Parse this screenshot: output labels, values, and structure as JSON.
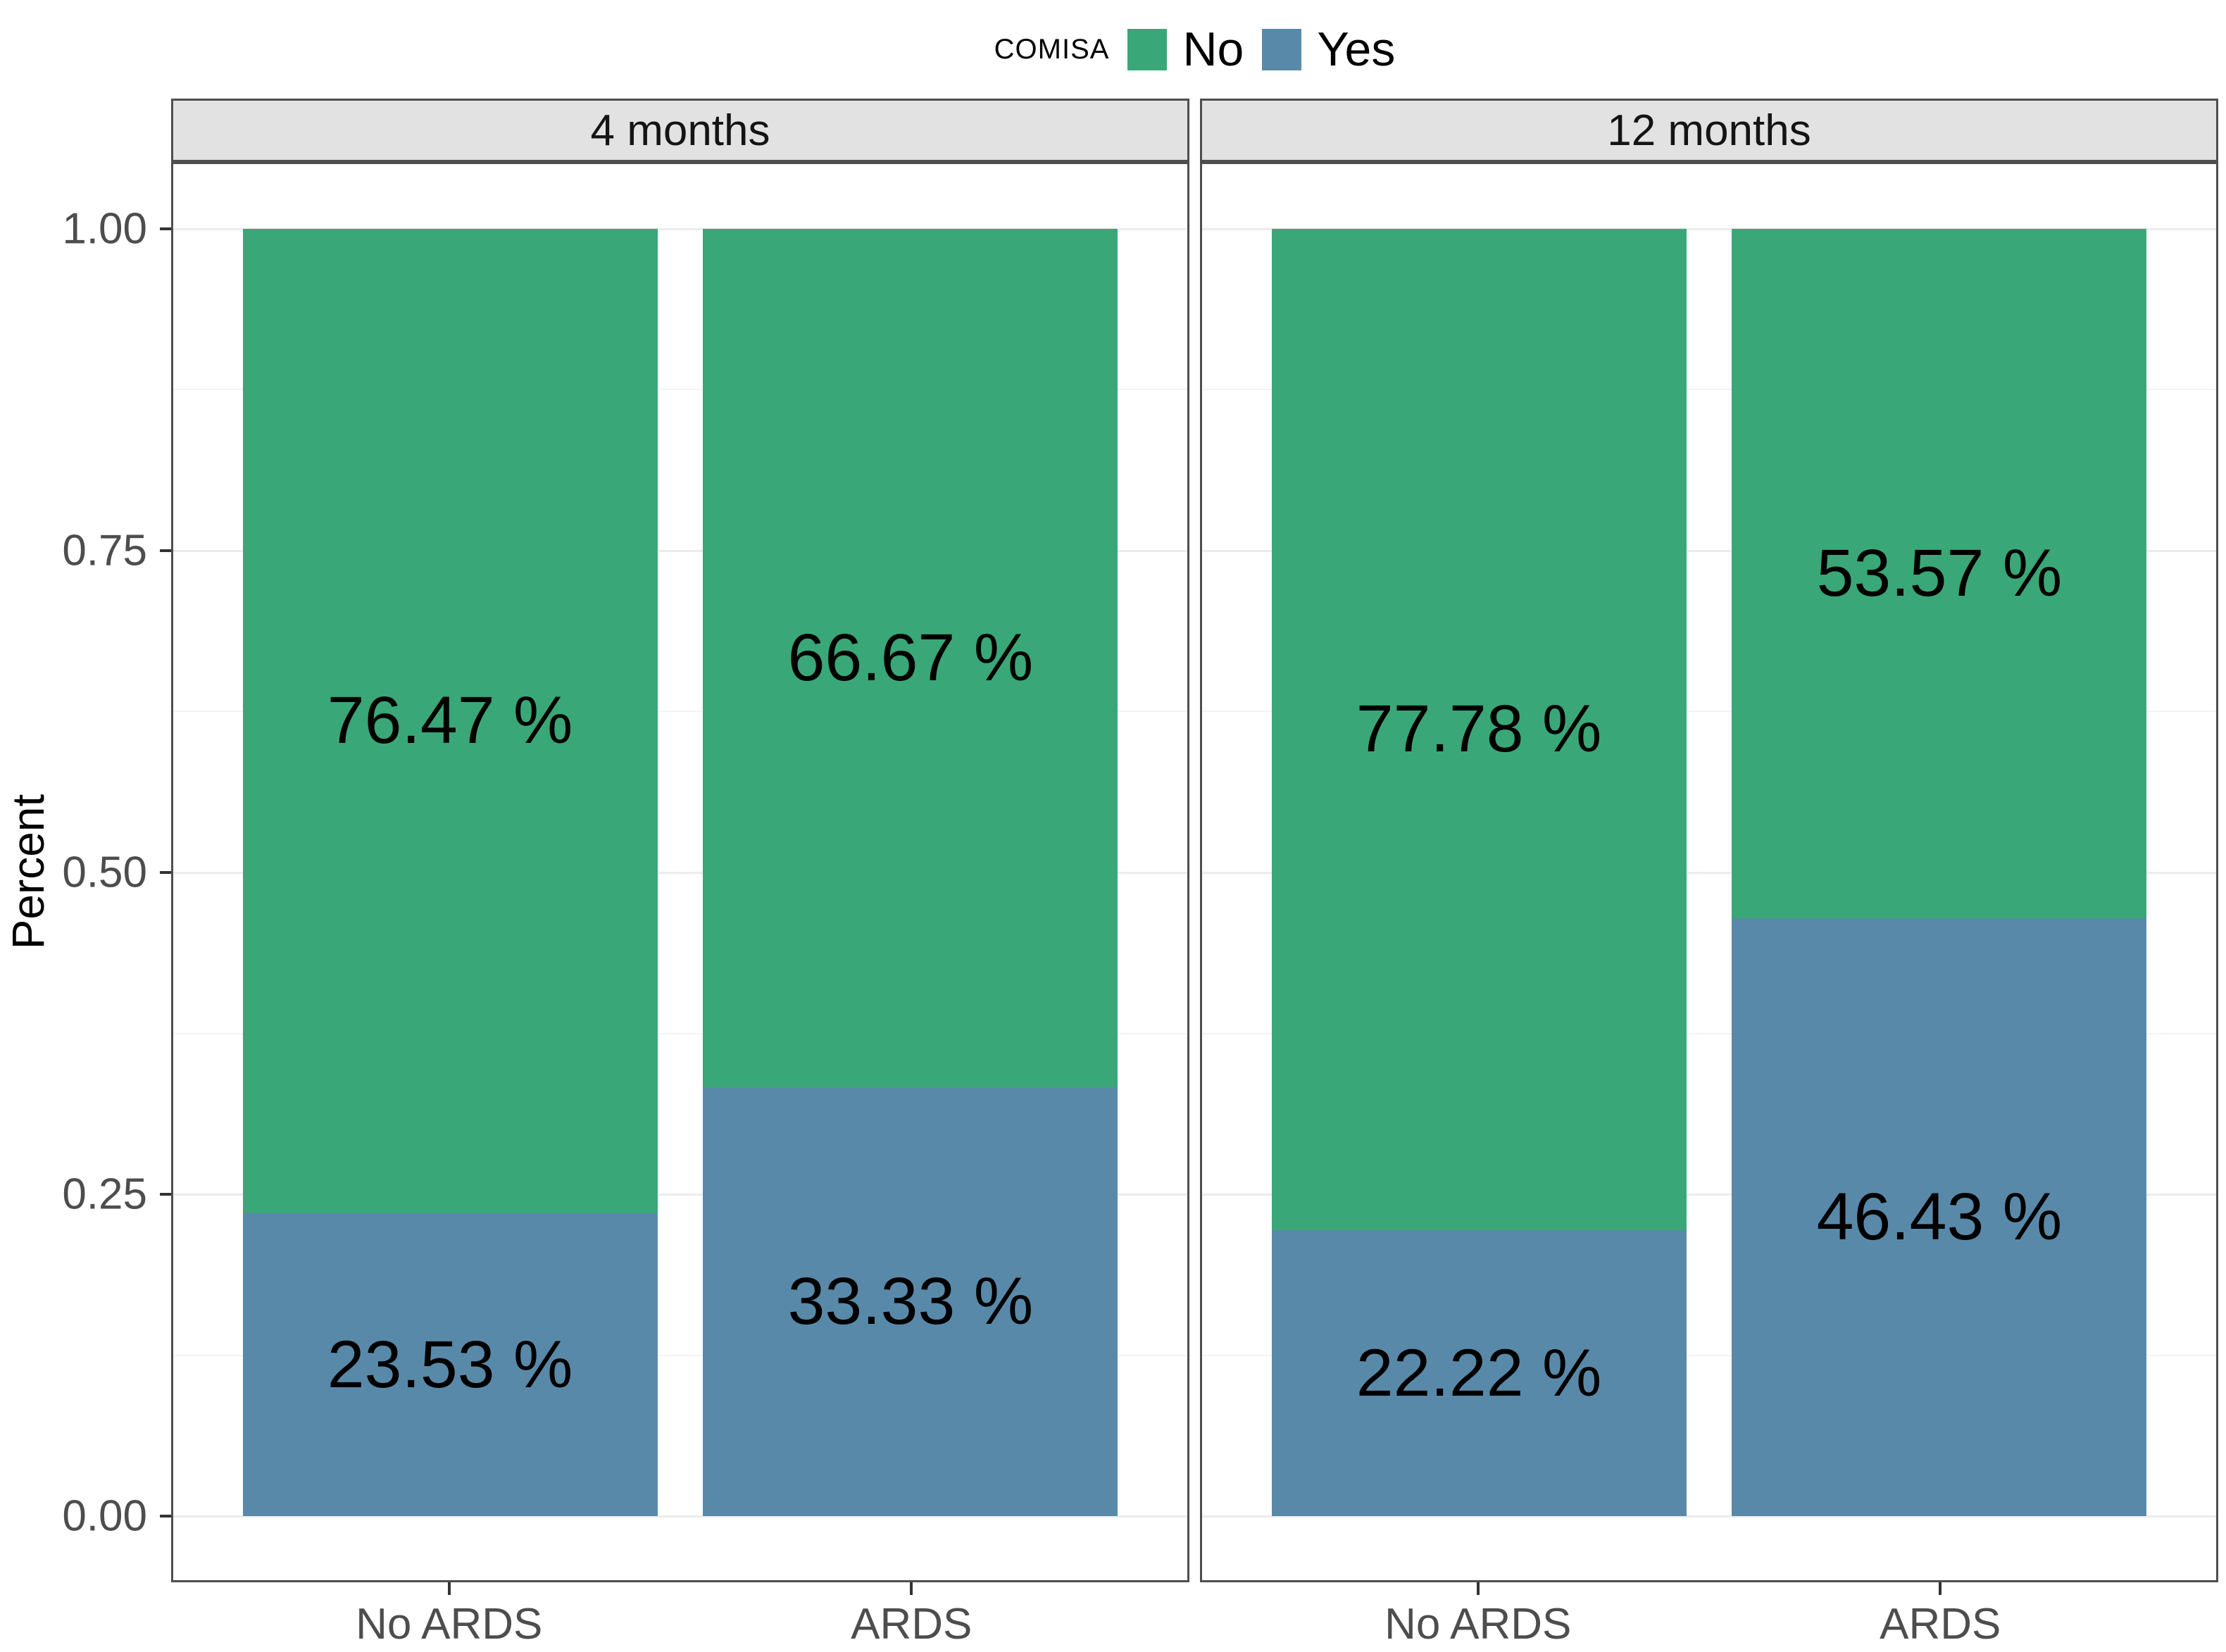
{
  "legend": {
    "title": "COMISA",
    "items": [
      {
        "label": "No",
        "color": "#3aa778"
      },
      {
        "label": "Yes",
        "color": "#5989a9"
      }
    ]
  },
  "y_axis": {
    "title": "Percent",
    "ticks": [
      {
        "value": 1.0,
        "label": "1.00"
      },
      {
        "value": 0.75,
        "label": "0.75"
      },
      {
        "value": 0.5,
        "label": "0.50"
      },
      {
        "value": 0.25,
        "label": "0.25"
      },
      {
        "value": 0.0,
        "label": "0.00"
      }
    ],
    "minor_ticks": [
      0.875,
      0.625,
      0.375,
      0.125
    ]
  },
  "chart_data": {
    "type": "bar",
    "subtype": "stacked-percent",
    "legend_title": "COMISA",
    "legend_position": "top-center",
    "ylabel": "Percent",
    "ylim": [
      0,
      1
    ],
    "grid": "major-and-minor",
    "categories": [
      "No ARDS",
      "ARDS"
    ],
    "series_colors": {
      "No": "#3aa778",
      "Yes": "#5989a9"
    },
    "facets": [
      {
        "label": "4 months",
        "bars": [
          {
            "category": "No ARDS",
            "segments": [
              {
                "series": "No",
                "value": 0.7647,
                "label": "76.47 %"
              },
              {
                "series": "Yes",
                "value": 0.2353,
                "label": "23.53 %"
              }
            ]
          },
          {
            "category": "ARDS",
            "segments": [
              {
                "series": "No",
                "value": 0.6667,
                "label": "66.67 %"
              },
              {
                "series": "Yes",
                "value": 0.3333,
                "label": "33.33 %"
              }
            ]
          }
        ]
      },
      {
        "label": "12 months",
        "bars": [
          {
            "category": "No ARDS",
            "segments": [
              {
                "series": "No",
                "value": 0.7778,
                "label": "77.78 %"
              },
              {
                "series": "Yes",
                "value": 0.2222,
                "label": "22.22 %"
              }
            ]
          },
          {
            "category": "ARDS",
            "segments": [
              {
                "series": "No",
                "value": 0.5357,
                "label": "53.57 %"
              },
              {
                "series": "Yes",
                "value": 0.4643,
                "label": "46.43 %"
              }
            ]
          }
        ]
      }
    ]
  }
}
